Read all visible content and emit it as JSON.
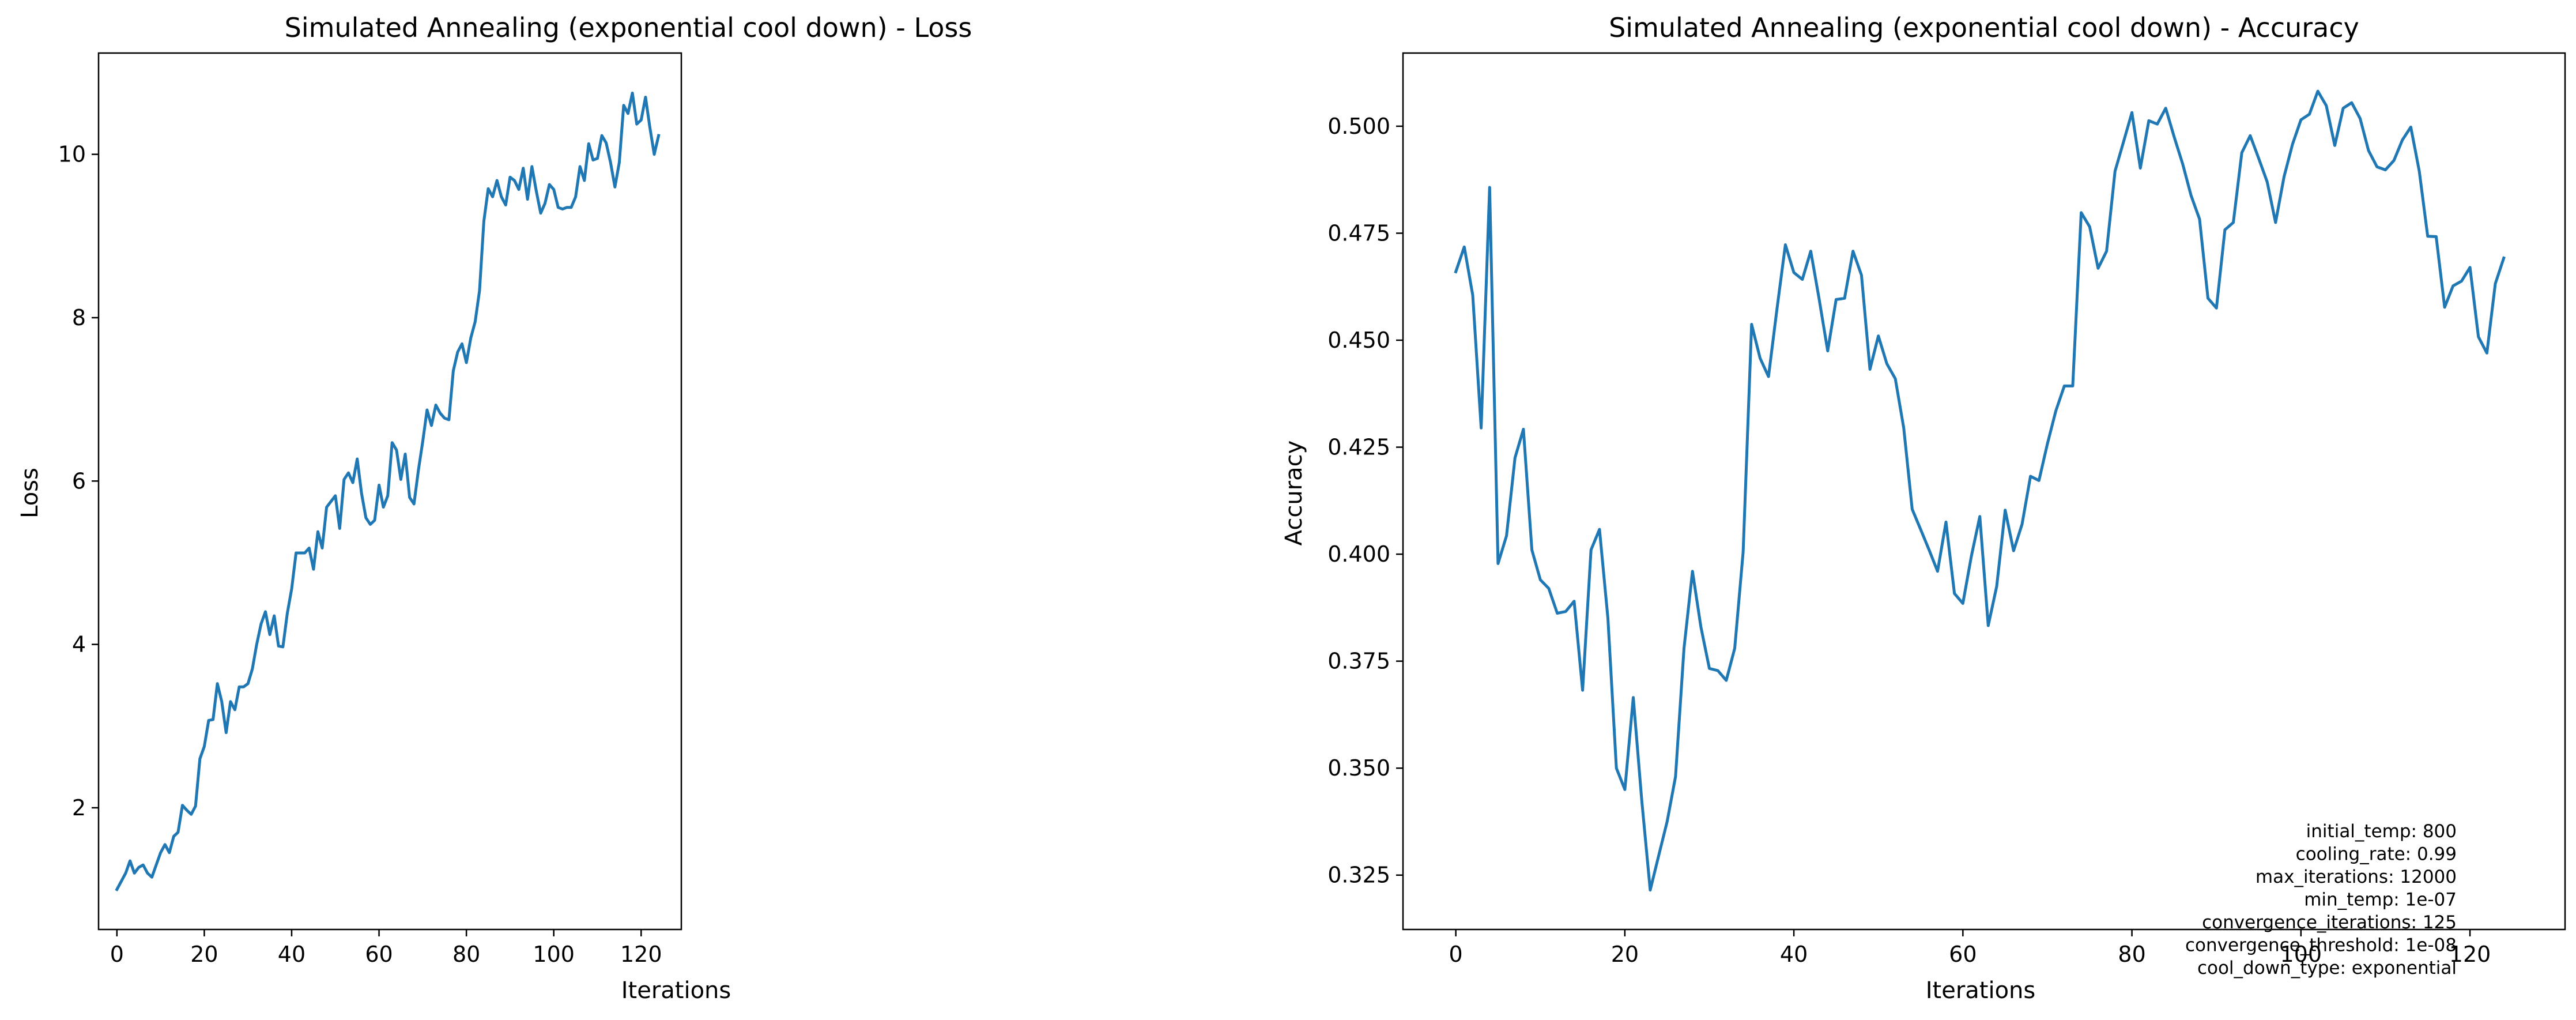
{
  "chart_data": [
    {
      "type": "line",
      "title": "Simulated Annealing (exponential cool down) - Loss",
      "xlabel": "Iterations",
      "ylabel": "Loss",
      "xlim": [
        -4.2,
        129.2
      ],
      "ylim": [
        0.51,
        11.24
      ],
      "xticks": [
        0,
        20,
        40,
        60,
        80,
        100,
        120
      ],
      "yticks": [
        2,
        4,
        6,
        8,
        10
      ],
      "ytick_labels": [
        "2",
        "4",
        "6",
        "8",
        "10"
      ],
      "grid": false,
      "color": "#1f77b4",
      "series": [
        {
          "values": [
            1.0,
            1.1,
            1.2,
            1.35,
            1.2,
            1.27,
            1.3,
            1.2,
            1.15,
            1.3,
            1.45,
            1.55,
            1.45,
            1.65,
            1.7,
            2.03,
            1.97,
            1.92,
            2.02,
            2.6,
            2.75,
            3.07,
            3.08,
            3.52,
            3.3,
            2.92,
            3.3,
            3.2,
            3.48,
            3.48,
            3.52,
            3.7,
            4.0,
            4.25,
            4.4,
            4.12,
            4.35,
            3.98,
            3.97,
            4.38,
            4.68,
            5.12,
            5.12,
            5.12,
            5.18,
            4.92,
            5.38,
            5.18,
            5.68,
            5.75,
            5.82,
            5.42,
            6.02,
            6.1,
            5.98,
            6.27,
            5.85,
            5.55,
            5.47,
            5.52,
            5.95,
            5.68,
            5.82,
            6.47,
            6.38,
            6.02,
            6.33,
            5.8,
            5.72,
            6.13,
            6.48,
            6.87,
            6.68,
            6.93,
            6.83,
            6.77,
            6.75,
            7.35,
            7.58,
            7.68,
            7.45,
            7.75,
            7.95,
            8.33,
            9.18,
            9.58,
            9.48,
            9.68,
            9.48,
            9.38,
            9.72,
            9.68,
            9.57,
            9.83,
            9.45,
            9.85,
            9.55,
            9.28,
            9.4,
            9.63,
            9.57,
            9.35,
            9.33,
            9.35,
            9.35,
            9.48,
            9.85,
            9.68,
            10.13,
            9.93,
            9.95,
            10.23,
            10.14,
            9.9,
            9.6,
            9.9,
            10.6,
            10.5,
            10.75,
            10.37,
            10.42,
            10.7,
            10.33,
            10.0,
            10.23
          ]
        }
      ]
    },
    {
      "type": "line",
      "title": "Simulated Annealing (exponential cool down) - Accuracy",
      "xlabel": "Iterations",
      "ylabel": "Accuracy",
      "xlim": [
        -6.25,
        131.25
      ],
      "ylim": [
        0.3123,
        0.5171
      ],
      "xticks": [
        0,
        20,
        40,
        60,
        80,
        100,
        120
      ],
      "yticks": [
        0.325,
        0.35,
        0.375,
        0.4,
        0.425,
        0.45,
        0.475,
        0.5
      ],
      "ytick_labels": [
        "0.325",
        "0.350",
        "0.375",
        "0.400",
        "0.425",
        "0.450",
        "0.475",
        "0.500"
      ],
      "grid": false,
      "color": "#1f77b4",
      "series": [
        {
          "values": [
            0.466,
            0.4718,
            0.4605,
            0.4295,
            0.4857,
            0.3978,
            0.4043,
            0.4225,
            0.4292,
            0.401,
            0.394,
            0.392,
            0.3862,
            0.3866,
            0.389,
            0.3682,
            0.401,
            0.4058,
            0.385,
            0.35,
            0.345,
            0.3665,
            0.3425,
            0.3215,
            0.3295,
            0.3375,
            0.348,
            0.378,
            0.396,
            0.383,
            0.3733,
            0.3728,
            0.3705,
            0.378,
            0.4005,
            0.4537,
            0.4458,
            0.4415,
            0.4573,
            0.4723,
            0.4658,
            0.4642,
            0.4708,
            0.4595,
            0.4475,
            0.4595,
            0.4598,
            0.4708,
            0.4652,
            0.4432,
            0.451,
            0.4445,
            0.441,
            0.4295,
            0.4105,
            0.4058,
            0.401,
            0.396,
            0.4075,
            0.3908,
            0.3885,
            0.3995,
            0.4088,
            0.3833,
            0.3925,
            0.4103,
            0.4008,
            0.407,
            0.4182,
            0.4172,
            0.4258,
            0.4335,
            0.4393,
            0.4393,
            0.4798,
            0.4765,
            0.4668,
            0.4708,
            0.4895,
            0.4963,
            0.5032,
            0.4902,
            0.5013,
            0.5005,
            0.5042,
            0.4975,
            0.4912,
            0.4838,
            0.4783,
            0.4598,
            0.4575,
            0.4758,
            0.4775,
            0.4938,
            0.4978,
            0.4925,
            0.487,
            0.4775,
            0.4882,
            0.4958,
            0.5015,
            0.5028,
            0.5082,
            0.5048,
            0.4955,
            0.5042,
            0.5055,
            0.5018,
            0.4943,
            0.4905,
            0.4898,
            0.492,
            0.4968,
            0.4998,
            0.4895,
            0.4743,
            0.4742,
            0.4577,
            0.4627,
            0.4638,
            0.467,
            0.4508,
            0.447,
            0.4632,
            0.4692
          ]
        }
      ],
      "annotations": [
        "initial_temp: 800",
        "cooling_rate: 0.99",
        "max_iterations: 12000",
        "min_temp: 1e-07",
        "convergence_iterations: 125",
        "convergence_threshold: 1e-08",
        "cool_down_type: exponential"
      ]
    }
  ]
}
